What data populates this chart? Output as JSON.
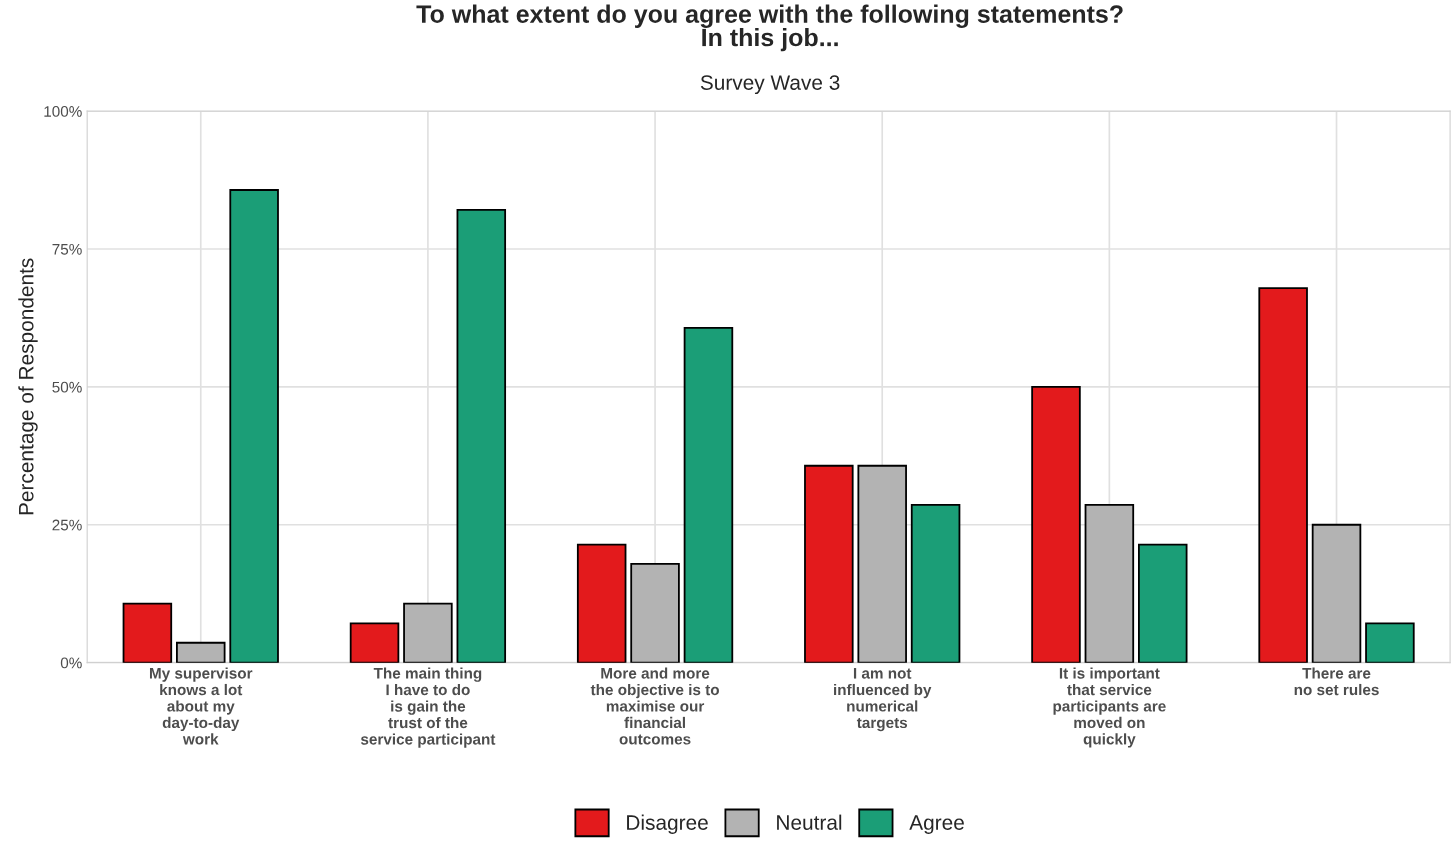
{
  "chart_data": {
    "type": "bar",
    "title": "To what extent do you agree with the following statements?\nIn this job...",
    "subtitle": "Survey Wave 3",
    "ylabel": "Percentage of Respondents",
    "categories": [
      "My supervisor\nknows a lot\nabout my\nday-to-day\nwork",
      "The main thing\nI have to do\nis gain the\ntrust of the\nservice participant",
      "More and more\nthe objective is to\nmaximise our\nfinancial\noutcomes",
      "I am not\ninfluenced by\nnumerical\ntargets",
      "It is important\nthat service\nparticipants are\nmoved on\nquickly",
      "There are\nno set rules"
    ],
    "series": [
      {
        "name": "Disagree",
        "color": "#e31a1c",
        "values": [
          10.7,
          7.1,
          21.4,
          35.7,
          50.0,
          67.9
        ]
      },
      {
        "name": "Neutral",
        "color": "#b3b3b3",
        "values": [
          3.6,
          10.7,
          17.9,
          35.7,
          28.6,
          25.0
        ]
      },
      {
        "name": "Agree",
        "color": "#1b9e77",
        "values": [
          85.7,
          82.1,
          60.7,
          28.6,
          21.4,
          7.1
        ]
      }
    ],
    "ylim": [
      0,
      100
    ],
    "yticks": [
      {
        "value": 0,
        "label": "0%"
      },
      {
        "value": 25,
        "label": "25%"
      },
      {
        "value": 50,
        "label": "50%"
      },
      {
        "value": 75,
        "label": "75%"
      },
      {
        "value": 100,
        "label": "100%"
      }
    ],
    "grid": true,
    "legend": "bottom"
  }
}
